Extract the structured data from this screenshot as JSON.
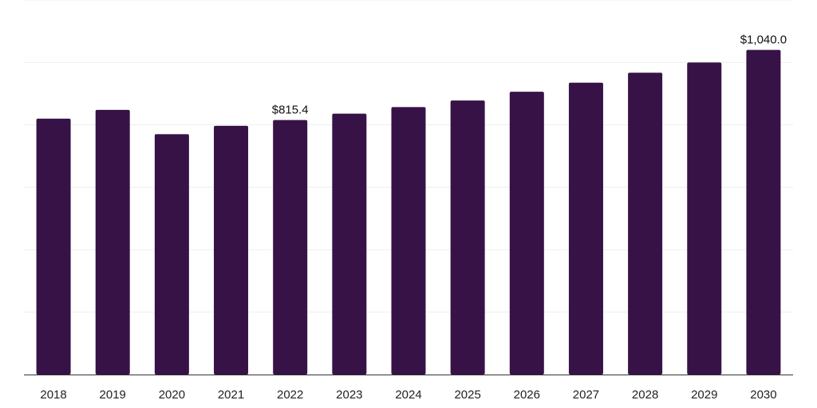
{
  "chart_data": {
    "type": "bar",
    "title": "",
    "xlabel": "",
    "ylabel": "",
    "categories": [
      "2018",
      "2019",
      "2020",
      "2021",
      "2022",
      "2023",
      "2024",
      "2025",
      "2026",
      "2027",
      "2028",
      "2029",
      "2030"
    ],
    "values": [
      820.0,
      848.0,
      770.0,
      797.0,
      815.4,
      836.0,
      857.0,
      878.0,
      906.0,
      935.0,
      967.0,
      1000.0,
      1040.0
    ],
    "data_labels": [
      {
        "index": 4,
        "text": "$815.4"
      },
      {
        "index": 12,
        "text": "$1,040.0"
      }
    ],
    "ylim": [
      0,
      1200
    ],
    "gridlines": [
      0,
      200,
      400,
      600,
      800,
      1000,
      1200
    ],
    "grid": true,
    "show_y_tick_labels": false,
    "bar_color": "#371247",
    "legend": "none"
  }
}
